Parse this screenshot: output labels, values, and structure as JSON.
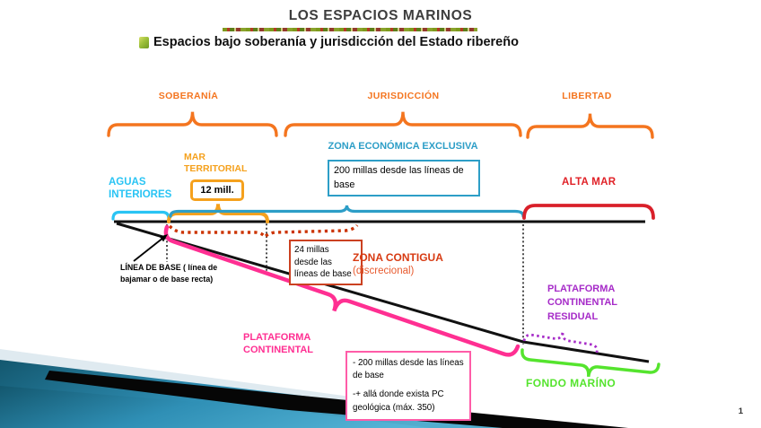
{
  "slide": {
    "title": "LOS ESPACIOS MARINOS",
    "subtitle": "Espacios bajo soberanía y jurisdicción del Estado ribereño",
    "page_number": "1"
  },
  "sections": {
    "soberania": "SOBERANÍA",
    "jurisdiccion": "JURISDICCIÓN",
    "libertad": "LIBERTAD"
  },
  "zones": {
    "aguas_interiores": "AGUAS INTERIORES",
    "mar_territorial": "MAR TERRITORIAL",
    "mar_territorial_box": "12 mill.",
    "zee": "ZONA ECONÓMICA EXCLUSIVA",
    "zee_box_lines": [
      "200 millas  desde las líneas de",
      "base"
    ],
    "alta_mar": "ALTA MAR",
    "zona_contigua": "ZONA CONTIGUA",
    "zona_contigua_note": "(discrecional)",
    "zona_contigua_box_lines": [
      "24 millas",
      "desde las",
      "líneas de base"
    ],
    "linea_base_lines": [
      "LÍNEA DE BASE ( línea de",
      "bajamar o de base recta)"
    ],
    "plataforma_continental": "PLATAFORMA CONTINENTAL",
    "plataforma_box_para1_lines": [
      "- 200 millas desde las líneas",
      "de base"
    ],
    "plataforma_box_para2_lines": [
      "-+ allá donde exista PC",
      "geológica (máx. 350)"
    ],
    "plataforma_residual": "PLATAFORMA CONTINENTAL RESIDUAL",
    "fondo_marino": "FONDO MARÍNO"
  },
  "colors": {
    "section_orange": "#f4751f",
    "gold": "#f5a11d",
    "cyan": "#29c4f4",
    "teal": "#2d9ec7",
    "red": "#d9202a",
    "red_orange": "#cc3300",
    "pink": "#ff2f92",
    "purple": "#a62bc8",
    "green": "#55e42e",
    "deco_teal_dark": "#13576e",
    "deco_teal_light": "#57b6d8",
    "deco_pale": "#dfeaf0"
  }
}
